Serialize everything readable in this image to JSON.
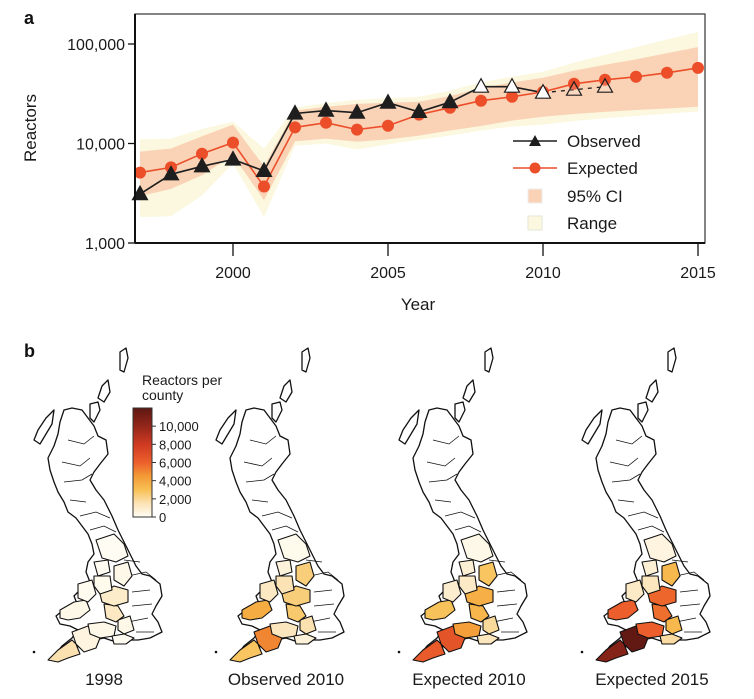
{
  "figure": {
    "panel_a_label": "a",
    "panel_b_label": "b"
  },
  "chart_data": [
    {
      "type": "line",
      "panel": "a",
      "title": "",
      "xlabel": "Year",
      "ylabel": "Reactors",
      "yscale": "log",
      "ylim": [
        1000,
        200000
      ],
      "xlim": [
        1996.8,
        2015.2
      ],
      "yticks": [
        {
          "value": 1000,
          "label": "1,000"
        },
        {
          "value": 10000,
          "label": "10,000"
        },
        {
          "value": 100000,
          "label": "100,000"
        }
      ],
      "xticks": [
        {
          "value": 2000,
          "label": "2000"
        },
        {
          "value": 2005,
          "label": "2005"
        },
        {
          "value": 2010,
          "label": "2010"
        },
        {
          "value": 2015,
          "label": "2015"
        }
      ],
      "grid": false,
      "legend_position": "bottom-right",
      "legend": [
        {
          "key": "observed",
          "label": "Observed"
        },
        {
          "key": "expected",
          "label": "Expected"
        },
        {
          "key": "ci",
          "label": "95% CI"
        },
        {
          "key": "range",
          "label": "Range"
        }
      ],
      "colors": {
        "observed": "#1e1e1e",
        "expected": "#ec4e2a",
        "ci": "#fad3b6",
        "range": "#fbf8df"
      },
      "series": [
        {
          "name": "Observed",
          "marker": "triangle",
          "x": [
            1997,
            1998,
            1999,
            2000,
            2001,
            2002,
            2003,
            2004,
            2005,
            2006,
            2007,
            2008,
            2009,
            2010,
            2011,
            2012
          ],
          "values": [
            3100,
            4900,
            5900,
            6900,
            5300,
            20000,
            21400,
            20400,
            25700,
            20800,
            26000,
            37200,
            37200,
            32400,
            34700,
            37200
          ],
          "open_marker_from": 2008,
          "dashed_from": 2010
        },
        {
          "name": "Expected",
          "marker": "circle",
          "x": [
            1997,
            1998,
            1999,
            2000,
            2001,
            2002,
            2003,
            2004,
            2005,
            2006,
            2007,
            2008,
            2009,
            2010,
            2011,
            2012,
            2013,
            2014,
            2015
          ],
          "values": [
            5100,
            5750,
            7900,
            10200,
            3700,
            14500,
            16200,
            13800,
            15100,
            19500,
            22900,
            26900,
            29500,
            33000,
            39800,
            43700,
            46800,
            51300,
            57500
          ]
        }
      ],
      "bands": {
        "x": [
          1997,
          1998,
          1999,
          2000,
          2001,
          2002,
          2003,
          2004,
          2005,
          2006,
          2007,
          2008,
          2009,
          2010,
          2011,
          2012,
          2013,
          2014,
          2015
        ],
        "ci_lower": [
          2950,
          3500,
          4800,
          7600,
          2700,
          10500,
          11200,
          10400,
          11000,
          12000,
          13500,
          15000,
          17000,
          18600,
          19800,
          20800,
          21700,
          22500,
          23400
        ],
        "ci_upper": [
          8300,
          8900,
          11800,
          15500,
          5900,
          21400,
          23400,
          25000,
          25700,
          26300,
          30000,
          36000,
          41000,
          45700,
          54000,
          62000,
          70000,
          81000,
          93000
        ],
        "range_lower": [
          1820,
          1860,
          3000,
          6300,
          1820,
          9500,
          10000,
          8700,
          9800,
          10900,
          12000,
          13500,
          14800,
          15500,
          16800,
          17900,
          18900,
          19900,
          20900
        ],
        "range_upper": [
          11000,
          11200,
          14000,
          16600,
          8900,
          22900,
          25500,
          27500,
          28500,
          29500,
          34000,
          41000,
          47000,
          52500,
          65000,
          78000,
          93000,
          111000,
          132000
        ]
      }
    },
    {
      "type": "heatmap",
      "panel": "b",
      "subtype": "choropleth",
      "title": "",
      "colorbar": {
        "title_line1": "Reactors per",
        "title_line2": "county",
        "range": [
          0,
          12000
        ],
        "ticks": [
          {
            "value": 0,
            "label": "0"
          },
          {
            "value": 2000,
            "label": "2,000"
          },
          {
            "value": 4000,
            "label": "4,000"
          },
          {
            "value": 6000,
            "label": "6,000"
          },
          {
            "value": 8000,
            "label": "8,000"
          },
          {
            "value": 10000,
            "label": "10,000"
          }
        ],
        "stops": [
          {
            "value": 0,
            "color": "#fffdf5"
          },
          {
            "value": 1500,
            "color": "#fbe3b5"
          },
          {
            "value": 3000,
            "color": "#f8c054"
          },
          {
            "value": 4500,
            "color": "#f39a35"
          },
          {
            "value": 6000,
            "color": "#ec5f2c"
          },
          {
            "value": 8000,
            "color": "#cf3a22"
          },
          {
            "value": 10000,
            "color": "#93261a"
          },
          {
            "value": 12000,
            "color": "#5e1812"
          }
        ]
      },
      "regions": [
        "cornwall",
        "devon",
        "somerset",
        "dorset",
        "wiltshire",
        "gloucestershire",
        "herefordshire",
        "shropshire",
        "staffordshire",
        "sw_wales",
        "mid_wales",
        "cheshire",
        "north_england"
      ],
      "maps": [
        {
          "label": "1998",
          "values": {
            "cornwall": 1600,
            "devon": 500,
            "somerset": 300,
            "dorset": 100,
            "wiltshire": 300,
            "gloucestershire": 1200,
            "herefordshire": 1000,
            "shropshire": 200,
            "staffordshire": 300,
            "sw_wales": 300,
            "mid_wales": 100,
            "cheshire": 100,
            "north_england": 50
          }
        },
        {
          "label": "Observed 2010",
          "values": {
            "cornwall": 2800,
            "devon": 5000,
            "somerset": 1300,
            "dorset": 700,
            "wiltshire": 1600,
            "gloucestershire": 2600,
            "herefordshire": 2400,
            "shropshire": 1500,
            "staffordshire": 2400,
            "sw_wales": 3800,
            "mid_wales": 1200,
            "cheshire": 600,
            "north_england": 200
          }
        },
        {
          "label": "Expected 2010",
          "values": {
            "cornwall": 6200,
            "devon": 6600,
            "somerset": 4300,
            "dorset": 1300,
            "wiltshire": 1900,
            "gloucestershire": 3400,
            "herefordshire": 3700,
            "shropshire": 1100,
            "staffordshire": 2800,
            "sw_wales": 2900,
            "mid_wales": 900,
            "cheshire": 800,
            "north_england": 300
          }
        },
        {
          "label": "Expected 2015",
          "values": {
            "cornwall": 10500,
            "devon": 11800,
            "somerset": 6000,
            "dorset": 1800,
            "wiltshire": 3300,
            "gloucestershire": 5600,
            "herefordshire": 5800,
            "shropshire": 1300,
            "staffordshire": 3300,
            "sw_wales": 6000,
            "mid_wales": 1100,
            "cheshire": 800,
            "north_england": 500
          }
        }
      ]
    }
  ]
}
